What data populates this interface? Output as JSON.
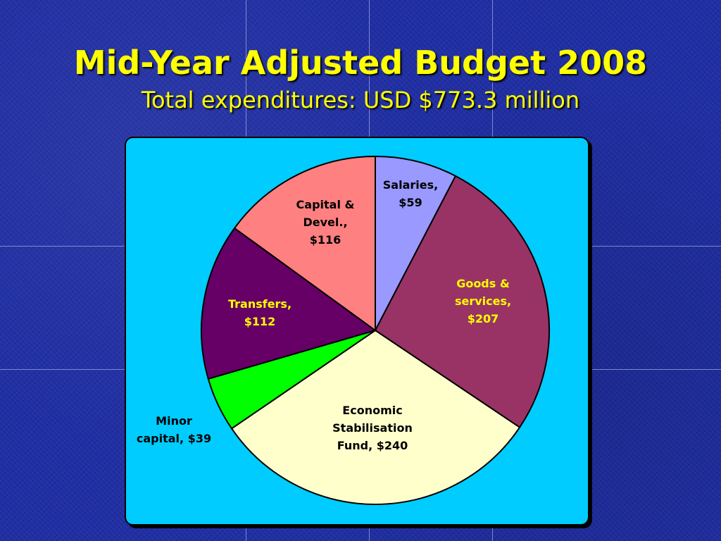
{
  "slide": {
    "title": "Mid-Year Adjusted Budget 2008",
    "subtitle": "Total expenditures: USD $773.3 million"
  },
  "colors": {
    "background": "#1f2ea3",
    "title": "#ffff00",
    "panel": "#00ccff"
  },
  "chart_data": {
    "type": "pie",
    "title": "Mid-Year Adjusted Budget 2008",
    "subtitle": "Total expenditures: USD $773.3 million",
    "unit": "USD million",
    "start_angle_deg": 0,
    "direction": "clockwise",
    "slices": [
      {
        "label": "Salaries, $59",
        "value": 59,
        "color": "#9999ff",
        "label_color": "#000000"
      },
      {
        "label": "Goods & services, $207",
        "value": 207,
        "color": "#993366",
        "label_color": "#ffff00"
      },
      {
        "label": "Economic Stabilisation Fund, $240",
        "value": 240,
        "color": "#ffffcc",
        "label_color": "#000000"
      },
      {
        "label": "Minor capital, $39",
        "value": 39,
        "color": "#00ff00",
        "label_color": "#000000"
      },
      {
        "label": "Transfers, $112",
        "value": 112,
        "color": "#660066",
        "label_color": "#ffff00"
      },
      {
        "label": "Capital & Devel., $116",
        "value": 116,
        "color": "#ff8080",
        "label_color": "#000000"
      }
    ],
    "slice_labels": [
      "Salaries,\n$59",
      "Goods &\nservices,\n$207",
      "Economic\nStabilisation\nFund, $240",
      "Minor\ncapital, $39",
      "Transfers,\n$112",
      "Capital &\nDevel.,\n$116"
    ]
  }
}
